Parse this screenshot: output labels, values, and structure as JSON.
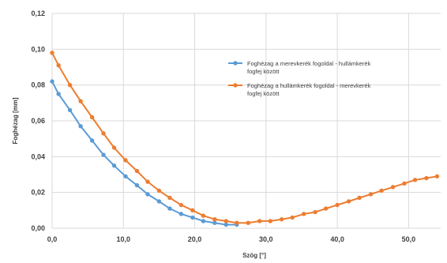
{
  "chart_data": {
    "type": "line",
    "title": "",
    "xlabel": "Szög [°]",
    "ylabel": "Foghézag [mm]",
    "xlim": [
      0,
      54.5
    ],
    "ylim": [
      0,
      0.12
    ],
    "xticks": [
      "0,0",
      "10,0",
      "20,0",
      "30,0",
      "40,0",
      "50,0"
    ],
    "yticks": [
      "0,00",
      "0,02",
      "0,04",
      "0,06",
      "0,08",
      "0,10",
      "0,12"
    ],
    "grid": true,
    "legend_position": "right",
    "series": [
      {
        "name": "Foghézag a merevkerék fogoldal - hullámkerék fogfej között",
        "color": "#5b9bd5",
        "x": [
          0,
          0.9,
          2.5,
          4.0,
          5.6,
          7.2,
          8.7,
          10.3,
          11.9,
          13.4,
          15.0,
          16.5,
          18.1,
          19.7,
          21.2,
          22.8,
          24.4,
          25.9
        ],
        "y": [
          0.082,
          0.075,
          0.066,
          0.057,
          0.049,
          0.041,
          0.035,
          0.029,
          0.024,
          0.019,
          0.015,
          0.011,
          0.008,
          0.006,
          0.004,
          0.003,
          0.002,
          0.002
        ]
      },
      {
        "name": "Foghézag a hullámkerék fogoldal - merevkerék fogfej között",
        "color": "#ed7d31",
        "x": [
          0,
          0.9,
          2.5,
          4.0,
          5.6,
          7.2,
          8.7,
          10.3,
          11.9,
          13.4,
          15.0,
          16.5,
          18.1,
          19.7,
          21.2,
          22.8,
          24.4,
          25.9,
          27.5,
          29.1,
          30.6,
          32.2,
          33.7,
          35.3,
          36.9,
          38.4,
          40.0,
          41.6,
          43.1,
          44.7,
          46.2,
          47.8,
          49.4,
          50.9,
          52.5,
          54.0
        ],
        "y": [
          0.098,
          0.091,
          0.08,
          0.071,
          0.062,
          0.053,
          0.045,
          0.038,
          0.032,
          0.026,
          0.021,
          0.017,
          0.013,
          0.01,
          0.007,
          0.005,
          0.004,
          0.003,
          0.003,
          0.004,
          0.004,
          0.005,
          0.006,
          0.008,
          0.009,
          0.011,
          0.013,
          0.015,
          0.017,
          0.019,
          0.021,
          0.023,
          0.025,
          0.027,
          0.028,
          0.029
        ]
      }
    ]
  }
}
